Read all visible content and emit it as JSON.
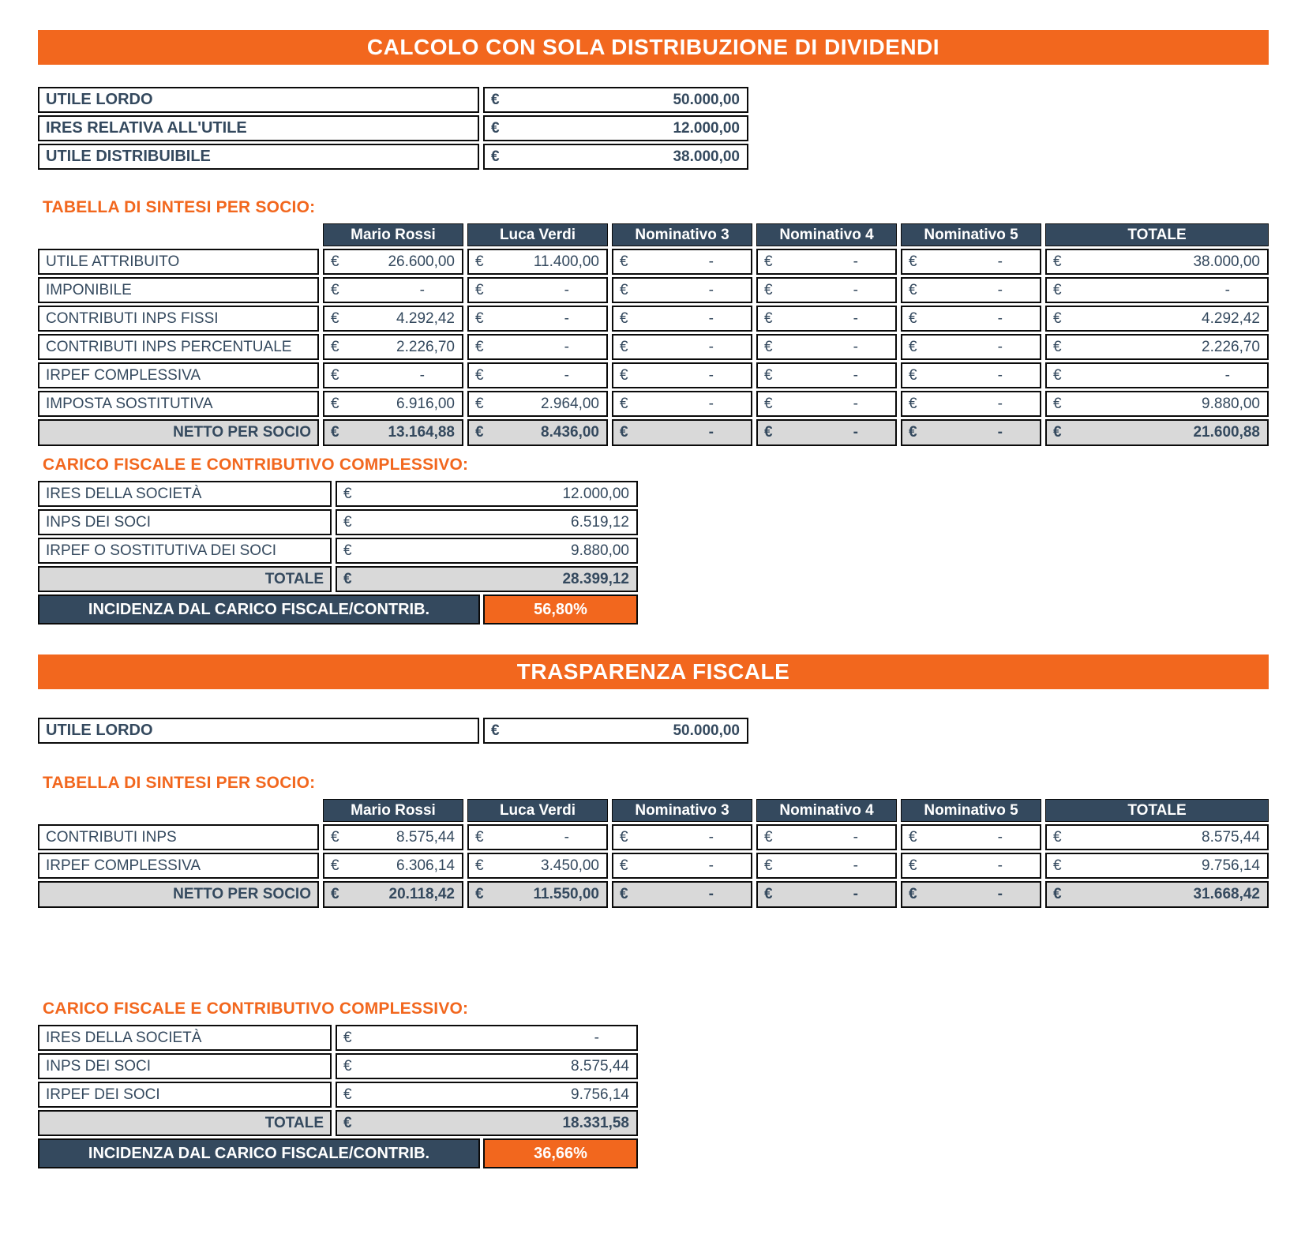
{
  "colors": {
    "accent_orange": "#F2671E",
    "header_blue": "#34495E",
    "text_blue": "#34495E",
    "total_row_gray": "#D9D9D9"
  },
  "dividendi": {
    "banner": "CALCOLO CON SOLA DISTRIBUZIONE DI DIVIDENDI",
    "currency": "€",
    "profit_rows": [
      {
        "label": "UTILE LORDO",
        "value": "50.000,00"
      },
      {
        "label": "IRES RELATIVA ALL'UTILE",
        "value": "12.000,00"
      },
      {
        "label": "UTILE DISTRIBUIBILE",
        "value": "38.000,00"
      }
    ],
    "sintesi_heading": "TABELLA DI SINTESI PER SOCIO:",
    "sintesi": {
      "columns": [
        "Mario Rossi",
        "Luca Verdi",
        "Nominativo 3",
        "Nominativo 4",
        "Nominativo 5",
        "TOTALE"
      ],
      "rows": [
        {
          "label": "UTILE ATTRIBUITO",
          "values": [
            "26.600,00",
            "11.400,00",
            "-",
            "-",
            "-",
            "38.000,00"
          ]
        },
        {
          "label": "IMPONIBILE",
          "values": [
            "-",
            "-",
            "-",
            "-",
            "-",
            "-"
          ]
        },
        {
          "label": "CONTRIBUTI INPS FISSI",
          "values": [
            "4.292,42",
            "-",
            "-",
            "-",
            "-",
            "4.292,42"
          ]
        },
        {
          "label": "CONTRIBUTI INPS PERCENTUALE",
          "values": [
            "2.226,70",
            "-",
            "-",
            "-",
            "-",
            "2.226,70"
          ]
        },
        {
          "label": "IRPEF COMPLESSIVA",
          "values": [
            "-",
            "-",
            "-",
            "-",
            "-",
            "-"
          ]
        },
        {
          "label": "IMPOSTA SOSTITUTIVA",
          "values": [
            "6.916,00",
            "2.964,00",
            "-",
            "-",
            "-",
            "9.880,00"
          ]
        },
        {
          "label": "NETTO PER SOCIO",
          "values": [
            "13.164,88",
            "8.436,00",
            "-",
            "-",
            "-",
            "21.600,88"
          ]
        }
      ]
    },
    "carico_heading": "CARICO FISCALE E CONTRIBUTIVO COMPLESSIVO:",
    "carico": {
      "rows": [
        {
          "label": "IRES DELLA SOCIETÀ",
          "value": "12.000,00"
        },
        {
          "label": "INPS DEI SOCI",
          "value": "6.519,12"
        },
        {
          "label": "IRPEF O SOSTITUTIVA DEI SOCI",
          "value": "9.880,00"
        }
      ],
      "total": {
        "label": "TOTALE",
        "value": "28.399,12"
      },
      "incidenza": {
        "label": "INCIDENZA DAL CARICO FISCALE/CONTRIB.",
        "value": "56,80%"
      }
    }
  },
  "trasparenza": {
    "banner": "TRASPARENZA FISCALE",
    "currency": "€",
    "profit_rows": [
      {
        "label": "UTILE LORDO",
        "value": "50.000,00"
      }
    ],
    "sintesi_heading": "TABELLA DI SINTESI PER SOCIO:",
    "sintesi": {
      "columns": [
        "Mario Rossi",
        "Luca Verdi",
        "Nominativo 3",
        "Nominativo 4",
        "Nominativo 5",
        "TOTALE"
      ],
      "rows": [
        {
          "label": "CONTRIBUTI INPS",
          "values": [
            "8.575,44",
            "-",
            "-",
            "-",
            "-",
            "8.575,44"
          ]
        },
        {
          "label": "IRPEF COMPLESSIVA",
          "values": [
            "6.306,14",
            "3.450,00",
            "-",
            "-",
            "-",
            "9.756,14"
          ]
        },
        {
          "label": "NETTO PER SOCIO",
          "values": [
            "20.118,42",
            "11.550,00",
            "-",
            "-",
            "-",
            "31.668,42"
          ]
        }
      ]
    },
    "carico_heading": "CARICO FISCALE E CONTRIBUTIVO COMPLESSIVO:",
    "carico": {
      "rows": [
        {
          "label": "IRES DELLA SOCIETÀ",
          "value": "-"
        },
        {
          "label": "INPS DEI SOCI",
          "value": "8.575,44"
        },
        {
          "label": "IRPEF DEI SOCI",
          "value": "9.756,14"
        }
      ],
      "total": {
        "label": "TOTALE",
        "value": "18.331,58"
      },
      "incidenza": {
        "label": "INCIDENZA DAL CARICO FISCALE/CONTRIB.",
        "value": "36,66%"
      }
    }
  }
}
